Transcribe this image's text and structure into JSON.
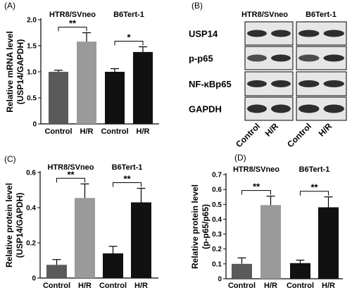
{
  "colors": {
    "control": "#5a5a5a",
    "hr": "#9a9a9a",
    "dark": "#111111",
    "blot_bg": "#e6e6e6",
    "band": "#1a1a1a"
  },
  "chart_data": [
    {
      "panel": "(A)",
      "type": "bar",
      "ylabel": [
        "Relative mRNA level",
        "(USP14/GAPDH)"
      ],
      "ylim": [
        0,
        2.0
      ],
      "yticks": [
        0,
        0.5,
        1.0,
        1.5,
        2.0
      ],
      "ytick_labels": [
        "0",
        "0.5",
        "1.0",
        "1.5",
        "2.0"
      ],
      "groups": [
        {
          "name": "HTR8/SVneo",
          "categories": [
            "Control",
            "H/R"
          ],
          "values": [
            1.0,
            1.58
          ],
          "errors": [
            0.03,
            0.17
          ],
          "sig": "**"
        },
        {
          "name": "B6Tert-1",
          "categories": [
            "Control",
            "H/R"
          ],
          "values": [
            1.0,
            1.38
          ],
          "errors": [
            0.06,
            0.1
          ],
          "sig": "*"
        }
      ]
    },
    {
      "panel": "(C)",
      "type": "bar",
      "ylabel": [
        "Relative protein level",
        "(USP14/GAPDH)"
      ],
      "ylim": [
        0,
        0.6
      ],
      "yticks": [
        0,
        0.2,
        0.4,
        0.6
      ],
      "ytick_labels": [
        "0",
        "0.2",
        "0.4",
        "0.6"
      ],
      "groups": [
        {
          "name": "HTR8/SVneo",
          "categories": [
            "Control",
            "H/R"
          ],
          "values": [
            0.075,
            0.455
          ],
          "errors": [
            0.03,
            0.08
          ],
          "sig": "**"
        },
        {
          "name": "B6Tert-1",
          "categories": [
            "Control",
            "H/R"
          ],
          "values": [
            0.14,
            0.43
          ],
          "errors": [
            0.04,
            0.08
          ],
          "sig": "**"
        }
      ]
    },
    {
      "panel": "(D)",
      "type": "bar",
      "ylabel": [
        "Relative protein level",
        "(p-p65/p65)"
      ],
      "ylim": [
        0,
        0.7
      ],
      "yticks": [
        0,
        0.1,
        0.2,
        0.3,
        0.4,
        0.5,
        0.6,
        0.7
      ],
      "ytick_labels": [
        "0",
        "0.1",
        "0.2",
        "0.3",
        "0.4",
        "0.5",
        "0.6",
        "0.7"
      ],
      "groups": [
        {
          "name": "HTR8/SVneo",
          "categories": [
            "Control",
            "H/R"
          ],
          "values": [
            0.1,
            0.495
          ],
          "errors": [
            0.04,
            0.06
          ],
          "sig": "**"
        },
        {
          "name": "B6Tert-1",
          "categories": [
            "Control",
            "H/R"
          ],
          "values": [
            0.105,
            0.48
          ],
          "errors": [
            0.02,
            0.07
          ],
          "sig": "**"
        }
      ]
    }
  ],
  "blot": {
    "panel": "(B)",
    "groups": [
      "HTR8/SVneo",
      "B6Tert-1"
    ],
    "rows": [
      "USP14",
      "p-p65",
      "NF-κBp65",
      "GAPDH"
    ],
    "categories": [
      "Control",
      "H/R"
    ]
  }
}
